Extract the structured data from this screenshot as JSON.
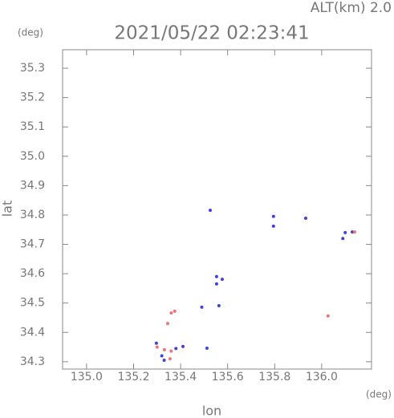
{
  "chart_data": {
    "type": "scatter",
    "title": "2021/05/22 02:23:41",
    "subtitle": "ALT(km) 2.0",
    "x_label": "lon",
    "y_label": "lat",
    "x_unit": "(deg)",
    "y_unit": "(deg)",
    "xlim": [
      134.898,
      136.212
    ],
    "ylim": [
      34.275,
      35.363
    ],
    "xticks": [
      {
        "value": 135,
        "label": "135.0"
      },
      135.2,
      135.4,
      135.6,
      135.8,
      {
        "value": 136,
        "label": "136.0"
      }
    ],
    "yticks": [
      34.3,
      34.4,
      34.5,
      34.6,
      34.7,
      34.8,
      34.9,
      {
        "value": 35,
        "label": "35.0"
      },
      35.1,
      35.2,
      35.3
    ],
    "grid": false,
    "series": [
      {
        "color": "#4040e0",
        "x": [
          135.526,
          135.795,
          135.795,
          135.932,
          136.1,
          136.13,
          136.09,
          135.553,
          135.577,
          135.553,
          135.49,
          135.563,
          135.297,
          135.32,
          135.41,
          135.512,
          135.33,
          135.38
        ],
        "y": [
          34.816,
          34.795,
          34.762,
          34.789,
          34.74,
          34.742,
          34.72,
          34.59,
          34.581,
          34.565,
          34.486,
          34.491,
          34.363,
          34.32,
          34.352,
          34.346,
          34.305,
          34.345
        ]
      },
      {
        "color": "#f07080",
        "x": [
          135.375,
          135.36,
          136.027,
          135.331,
          135.36,
          135.355,
          135.345,
          136.14,
          135.3
        ],
        "y": [
          34.472,
          34.466,
          34.456,
          34.341,
          34.336,
          34.31,
          34.43,
          34.742,
          34.35
        ]
      }
    ]
  }
}
